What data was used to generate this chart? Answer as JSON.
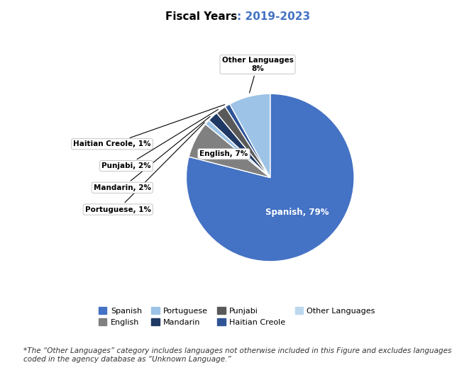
{
  "title_prefix": "Fiscal Years",
  "title_years": "2019-2023",
  "labels": [
    "Spanish",
    "English",
    "Portuguese",
    "Mandarin",
    "Punjabi",
    "Haitian Creole",
    "Other Languages"
  ],
  "values": [
    79,
    7,
    1,
    2,
    2,
    1,
    8
  ],
  "colors": [
    "#4472C4",
    "#808080",
    "#9DC3E6",
    "#1F3864",
    "#595959",
    "#2E5496",
    "#9DC3E6"
  ],
  "legend_colors": [
    "#4472C4",
    "#808080",
    "#9DC3E6",
    "#1F3864",
    "#595959",
    "#2E5496",
    "#BDD7EE"
  ],
  "footnote": "*The “Other Languages” category includes languages not otherwise included in this Figure and excludes languages coded in the agency database as “Unknown Language.”",
  "background_color": "#FFFFFF"
}
